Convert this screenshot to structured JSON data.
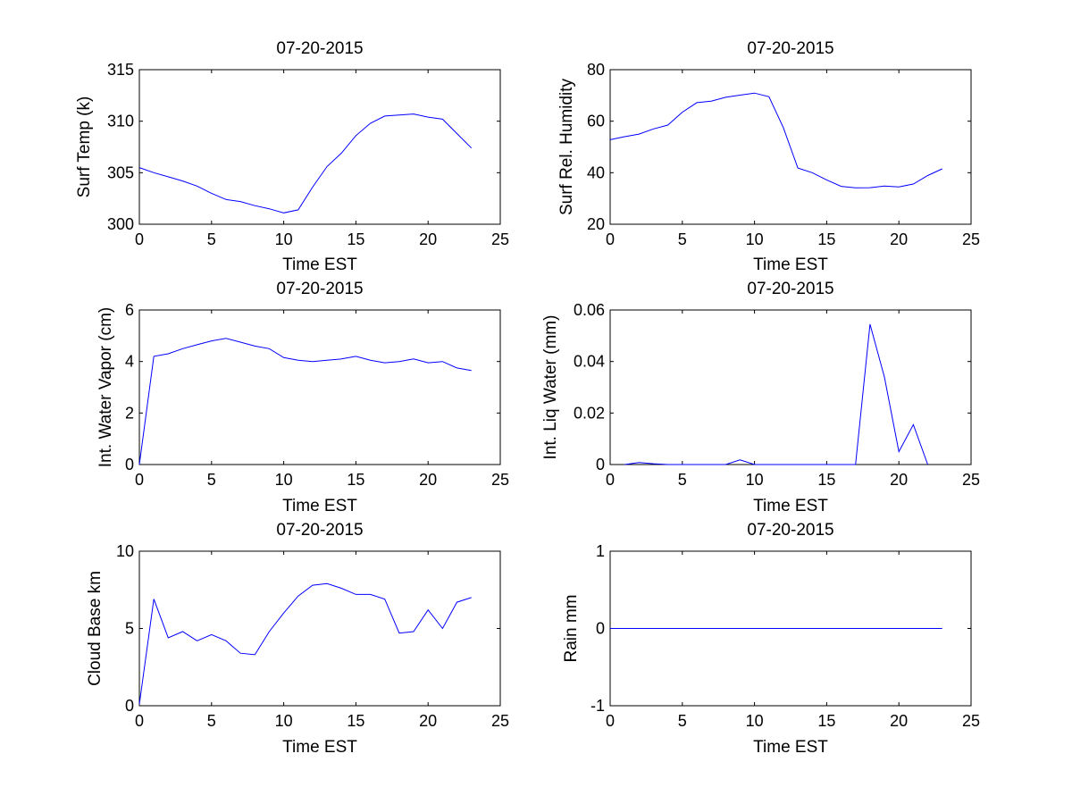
{
  "figure": {
    "series_color": "#0000ff"
  },
  "chart_data": [
    {
      "type": "line",
      "title": "07-20-2015",
      "xlabel": "Time EST",
      "ylabel": "Surf Temp (k)",
      "xlim": [
        0,
        25
      ],
      "ylim": [
        300,
        315
      ],
      "xticks": [
        0,
        5,
        10,
        15,
        20,
        25
      ],
      "yticks": [
        300,
        305,
        310,
        315
      ],
      "xtick_labels": [
        "0",
        "5",
        "10",
        "15",
        "20",
        "25"
      ],
      "ytick_labels": [
        "300",
        "305",
        "310",
        "315"
      ],
      "x": [
        0,
        1,
        2,
        3,
        4,
        5,
        6,
        7,
        8,
        9,
        10,
        11,
        12,
        13,
        14,
        15,
        16,
        17,
        18,
        19,
        20,
        21,
        22,
        23
      ],
      "y": [
        305.5,
        305.0,
        304.6,
        304.2,
        303.7,
        303.0,
        302.4,
        302.2,
        301.8,
        301.5,
        301.1,
        301.4,
        303.6,
        305.6,
        306.9,
        308.6,
        309.8,
        310.5,
        310.6,
        310.7,
        310.4,
        310.2,
        308.8,
        307.4
      ]
    },
    {
      "type": "line",
      "title": "07-20-2015",
      "xlabel": "Time EST",
      "ylabel": "Surf Rel. Humidity",
      "xlim": [
        0,
        25
      ],
      "ylim": [
        20,
        80
      ],
      "xticks": [
        0,
        5,
        10,
        15,
        20,
        25
      ],
      "yticks": [
        20,
        40,
        60,
        80
      ],
      "xtick_labels": [
        "0",
        "5",
        "10",
        "15",
        "20",
        "25"
      ],
      "ytick_labels": [
        "20",
        "40",
        "60",
        "80"
      ],
      "x": [
        0,
        1,
        2,
        3,
        4,
        5,
        6,
        7,
        8,
        9,
        10,
        11,
        12,
        13,
        14,
        15,
        16,
        17,
        18,
        19,
        20,
        21,
        22,
        23
      ],
      "y": [
        52.8,
        54.0,
        55.0,
        57.0,
        58.5,
        63.5,
        67.2,
        67.8,
        69.3,
        70.1,
        70.9,
        69.5,
        57.5,
        41.8,
        40.0,
        37.2,
        34.7,
        34.1,
        34.2,
        34.8,
        34.5,
        35.6,
        38.9,
        41.5
      ]
    },
    {
      "type": "line",
      "title": "07-20-2015",
      "xlabel": "Time EST",
      "ylabel": "Int. Water Vapor (cm)",
      "xlim": [
        0,
        25
      ],
      "ylim": [
        0,
        6
      ],
      "xticks": [
        0,
        5,
        10,
        15,
        20,
        25
      ],
      "yticks": [
        0,
        2,
        4,
        6
      ],
      "xtick_labels": [
        "0",
        "5",
        "10",
        "15",
        "20",
        "25"
      ],
      "ytick_labels": [
        "0",
        "2",
        "4",
        "6"
      ],
      "x": [
        0,
        1,
        2,
        3,
        4,
        5,
        6,
        7,
        8,
        9,
        10,
        11,
        12,
        13,
        14,
        15,
        16,
        17,
        18,
        19,
        20,
        21,
        22,
        23
      ],
      "y": [
        0.0,
        4.2,
        4.3,
        4.5,
        4.65,
        4.8,
        4.9,
        4.75,
        4.6,
        4.5,
        4.15,
        4.05,
        4.0,
        4.05,
        4.1,
        4.2,
        4.05,
        3.95,
        4.0,
        4.1,
        3.95,
        4.0,
        3.75,
        3.65
      ]
    },
    {
      "type": "line",
      "title": "07-20-2015",
      "xlabel": "Time EST",
      "ylabel": "Int. Liq Water (mm)",
      "xlim": [
        0,
        25
      ],
      "ylim": [
        0,
        0.06
      ],
      "xticks": [
        0,
        5,
        10,
        15,
        20,
        25
      ],
      "yticks": [
        0,
        0.02,
        0.04,
        0.06
      ],
      "xtick_labels": [
        "0",
        "5",
        "10",
        "15",
        "20",
        "25"
      ],
      "ytick_labels": [
        "0",
        "0.02",
        "0.04",
        "0.06"
      ],
      "x": [
        1,
        2,
        3,
        4,
        5,
        6,
        7,
        8,
        9,
        10,
        11,
        12,
        13,
        14,
        15,
        16,
        17,
        18,
        19,
        20,
        21,
        22
      ],
      "y": [
        0,
        0.0008,
        0.0003,
        0,
        0,
        0,
        0,
        0,
        0.0018,
        0,
        0,
        0,
        0,
        0,
        0,
        0,
        0,
        0.0545,
        0.034,
        0.005,
        0.0155,
        0
      ]
    },
    {
      "type": "line",
      "title": "07-20-2015",
      "xlabel": "Time EST",
      "ylabel": "Cloud Base km",
      "xlim": [
        0,
        25
      ],
      "ylim": [
        0,
        10
      ],
      "xticks": [
        0,
        5,
        10,
        15,
        20,
        25
      ],
      "yticks": [
        0,
        5,
        10
      ],
      "xtick_labels": [
        "0",
        "5",
        "10",
        "15",
        "20",
        "25"
      ],
      "ytick_labels": [
        "0",
        "5",
        "10"
      ],
      "x": [
        0,
        1,
        2,
        3,
        4,
        5,
        6,
        7,
        8,
        9,
        10,
        11,
        12,
        13,
        14,
        15,
        16,
        17,
        18,
        19,
        20,
        21,
        22,
        23
      ],
      "y": [
        0.1,
        6.9,
        4.4,
        4.8,
        4.2,
        4.6,
        4.2,
        3.4,
        3.3,
        4.8,
        6.0,
        7.1,
        7.8,
        7.9,
        7.6,
        7.2,
        7.2,
        6.9,
        4.7,
        4.8,
        6.2,
        5.0,
        6.7,
        7.0
      ]
    },
    {
      "type": "line",
      "title": "07-20-2015",
      "xlabel": "Time EST",
      "ylabel": "Rain mm",
      "xlim": [
        0,
        25
      ],
      "ylim": [
        -1,
        1
      ],
      "xticks": [
        0,
        5,
        10,
        15,
        20,
        25
      ],
      "yticks": [
        -1,
        0,
        1
      ],
      "xtick_labels": [
        "0",
        "5",
        "10",
        "15",
        "20",
        "25"
      ],
      "ytick_labels": [
        "-1",
        "0",
        "1"
      ],
      "x": [
        0,
        1,
        2,
        3,
        4,
        5,
        6,
        7,
        8,
        9,
        10,
        11,
        12,
        13,
        14,
        15,
        16,
        17,
        18,
        19,
        20,
        21,
        22,
        23
      ],
      "y": [
        0,
        0,
        0,
        0,
        0,
        0,
        0,
        0,
        0,
        0,
        0,
        0,
        0,
        0,
        0,
        0,
        0,
        0,
        0,
        0,
        0,
        0,
        0,
        0
      ]
    }
  ]
}
